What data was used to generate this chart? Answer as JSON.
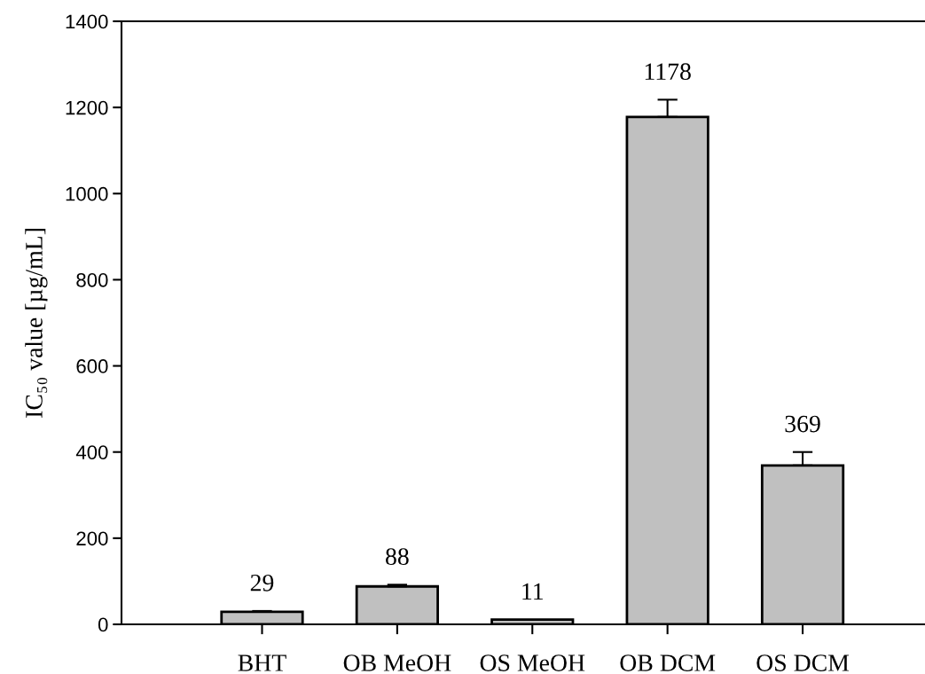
{
  "chart_data": {
    "type": "bar",
    "ylabel": "IC₅₀ value [µg/mL]",
    "categories": [
      "BHT",
      "OB MeOH",
      "OS MeOH",
      "OB DCM",
      "OS DCM"
    ],
    "values": [
      29,
      88,
      11,
      1178,
      369
    ],
    "errors": [
      2,
      4,
      null,
      40,
      31
    ],
    "color": "#c0c0c0",
    "ylim": [
      0,
      1400
    ],
    "yticks": [
      0,
      200,
      400,
      600,
      800,
      1000,
      1200,
      1400
    ],
    "data_labels": true
  }
}
